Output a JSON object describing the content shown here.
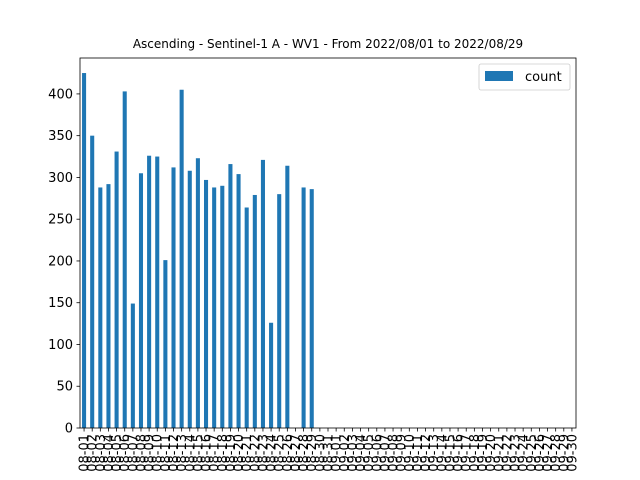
{
  "chart_data": {
    "type": "bar",
    "title": "Ascending - Sentinel-1 A - WV1 - From 2022/08/01 to 2022/08/29",
    "xlabel": "",
    "ylabel": "",
    "ylim": [
      0,
      443
    ],
    "yticks": [
      0,
      50,
      100,
      150,
      200,
      250,
      300,
      350,
      400
    ],
    "legend": {
      "placement": "top-right"
    },
    "colors": {
      "bar": "#1f77b4"
    },
    "categories": [
      "08-01",
      "08-02",
      "08-03",
      "08-04",
      "08-05",
      "08-06",
      "08-07",
      "08-08",
      "08-09",
      "08-10",
      "08-11",
      "08-12",
      "08-13",
      "08-14",
      "08-15",
      "08-16",
      "08-17",
      "08-18",
      "08-19",
      "08-20",
      "08-21",
      "08-22",
      "08-23",
      "08-24",
      "08-25",
      "08-26",
      "08-27",
      "08-28",
      "08-29",
      "08-30",
      "08-31",
      "09-01",
      "09-02",
      "09-03",
      "09-04",
      "09-05",
      "09-06",
      "09-07",
      "09-08",
      "09-09",
      "09-10",
      "09-11",
      "09-12",
      "09-13",
      "09-14",
      "09-15",
      "09-16",
      "09-17",
      "09-18",
      "09-19",
      "09-20",
      "09-21",
      "09-22",
      "09-23",
      "09-24",
      "09-25",
      "09-26",
      "09-27",
      "09-28",
      "09-29",
      "09-30"
    ],
    "series": [
      {
        "name": "count",
        "values": [
          425,
          350,
          288,
          292,
          331,
          403,
          149,
          305,
          326,
          325,
          201,
          312,
          405,
          308,
          323,
          297,
          288,
          290,
          316,
          304,
          264,
          279,
          321,
          126,
          280,
          314,
          0,
          288,
          286,
          0,
          0,
          0,
          0,
          0,
          0,
          0,
          0,
          0,
          0,
          0,
          0,
          0,
          0,
          0,
          0,
          0,
          0,
          0,
          0,
          0,
          0,
          0,
          0,
          0,
          0,
          0,
          0,
          0,
          0,
          0,
          0
        ]
      }
    ]
  }
}
